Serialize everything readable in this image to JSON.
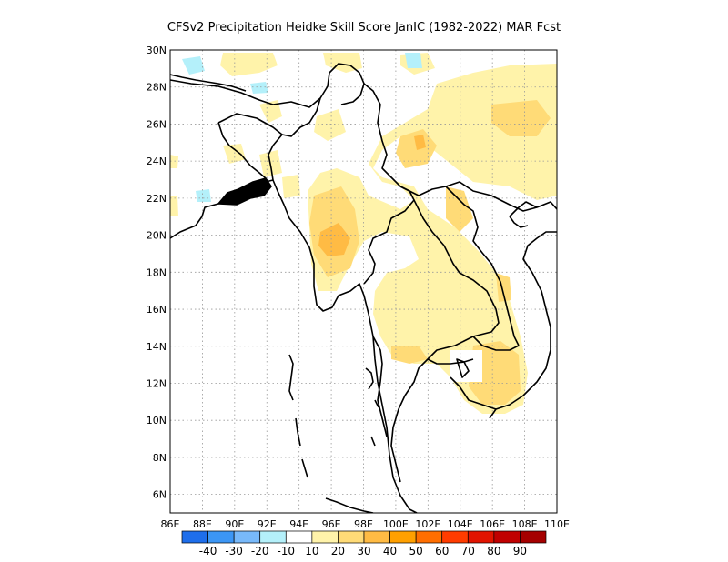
{
  "title": "CFSv2  Precipitation Heidke Skill Score JanIC (1982-2022) MAR Fcst",
  "map": {
    "lon_range": [
      86,
      110
    ],
    "lat_range": [
      5,
      30
    ],
    "lon_ticks": [
      "86E",
      "88E",
      "90E",
      "92E",
      "94E",
      "96E",
      "98E",
      "100E",
      "102E",
      "104E",
      "106E",
      "108E",
      "110E"
    ],
    "lat_ticks": [
      "6N",
      "8N",
      "10N",
      "12N",
      "14N",
      "16N",
      "18N",
      "20N",
      "22N",
      "24N",
      "26N",
      "28N",
      "30N"
    ],
    "grid": true,
    "region": "Myanmar, Thailand, Laos, Cambodia, Vietnam, Bangladesh",
    "skill_regions": [
      {
        "category": "10-20",
        "color": "#FFF3AA",
        "areas": [
          "central Thailand",
          "Cambodia",
          "eastern Myanmar",
          "southern China (Yunnan)",
          "Laos"
        ]
      },
      {
        "category": "20-30",
        "color": "#FFDB77",
        "areas": [
          "central Myanmar",
          "western Cambodia",
          "Yunnan"
        ]
      },
      {
        "category": "30-40",
        "color": "#FFBB44",
        "areas": [
          "central Myanmar near 19.5N 95E"
        ]
      },
      {
        "category": "-10 to -20",
        "color": "#B4F0FA",
        "areas": [
          "northern Myanmar/Tibet border"
        ]
      }
    ]
  },
  "colorbar": {
    "colors": [
      "#1E6EEB",
      "#3C96F5",
      "#78B9FA",
      "#B4F0FA",
      "#FFFFFF",
      "#FFF3AA",
      "#FFDB77",
      "#FFBB44",
      "#FFA000",
      "#FF6E00",
      "#FF3C00",
      "#E11400",
      "#C00000",
      "#A50000"
    ],
    "labels": [
      "-40",
      "-30",
      "-20",
      "-10",
      "10",
      "20",
      "30",
      "40",
      "50",
      "60",
      "70",
      "80",
      "90"
    ]
  }
}
